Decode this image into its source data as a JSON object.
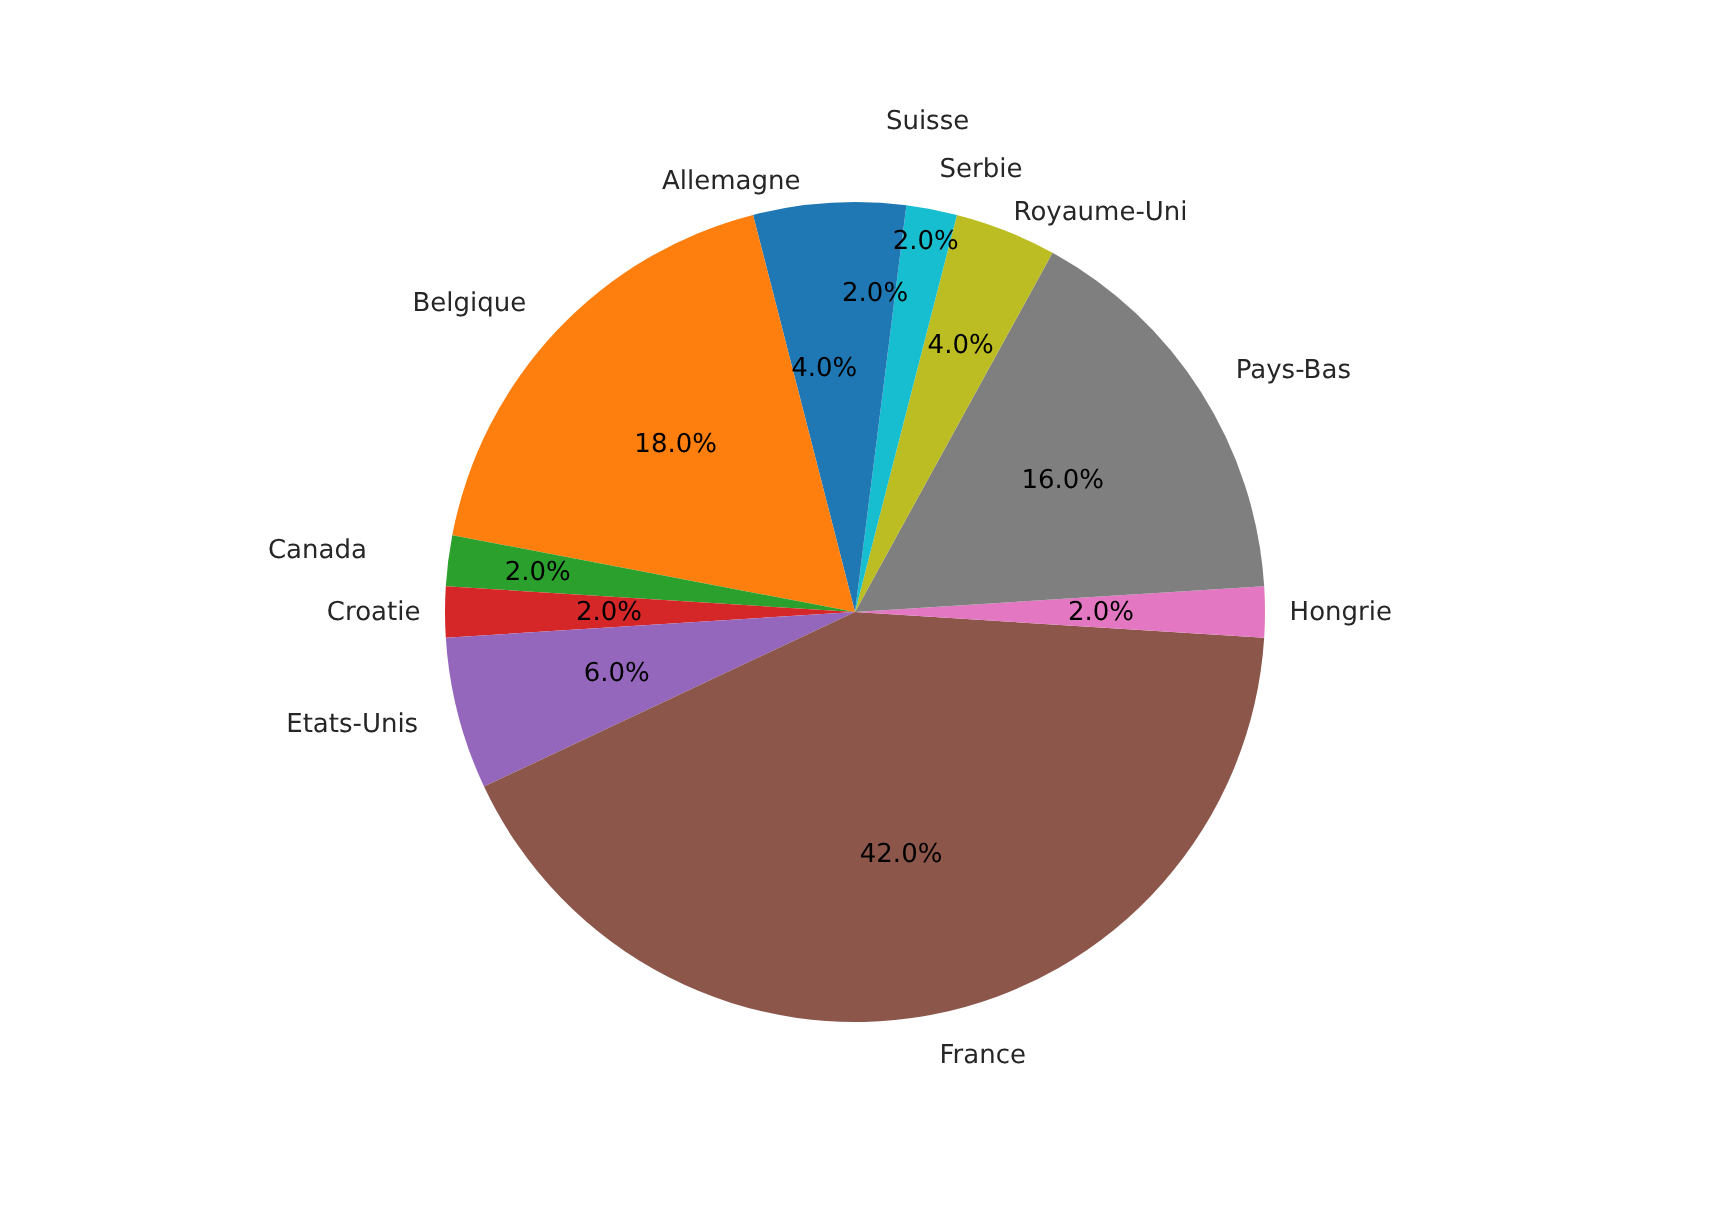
{
  "chart_data": {
    "type": "pie",
    "categories": [
      "Allemagne",
      "Belgique",
      "Canada",
      "Croatie",
      "Etats-Unis",
      "France",
      "Hongrie",
      "Pays-Bas",
      "Royaume-Uni",
      "Serbie",
      "Suisse"
    ],
    "values": [
      4,
      18,
      2,
      2,
      6,
      42,
      2,
      16,
      4,
      2,
      2
    ],
    "value_labels": [
      "4.0%",
      "18.0%",
      "2.0%",
      "2.0%",
      "6.0%",
      "42.0%",
      "2.0%",
      "16.0%",
      "4.0%",
      "2.0%",
      "2.0%"
    ],
    "colors": [
      "#1f77b4",
      "#ff7f0e",
      "#2ca02c",
      "#d62728",
      "#9467bd",
      "#8c564b",
      "#e377c2",
      "#7f7f7f",
      "#bcbd22",
      "#17becf",
      "#1f77b4"
    ]
  }
}
